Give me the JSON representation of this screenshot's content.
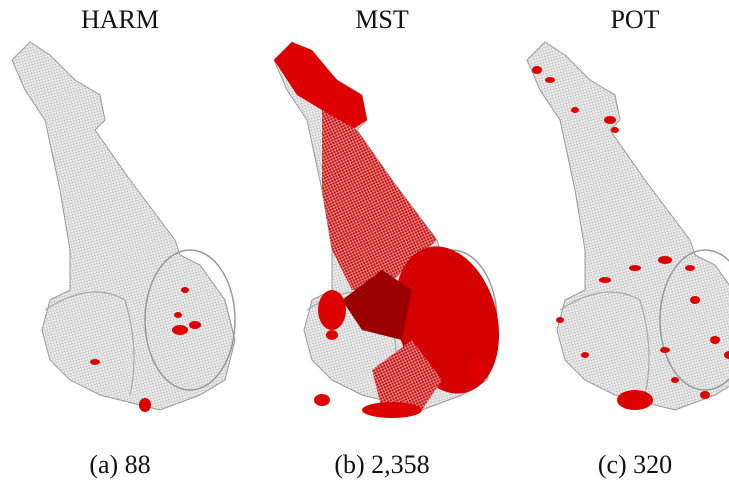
{
  "panels": [
    {
      "title": "HARM",
      "caption": "(a) 88"
    },
    {
      "title": "MST",
      "caption": "(b) 2,358"
    },
    {
      "title": "POT",
      "caption": "(c) 320"
    }
  ]
}
